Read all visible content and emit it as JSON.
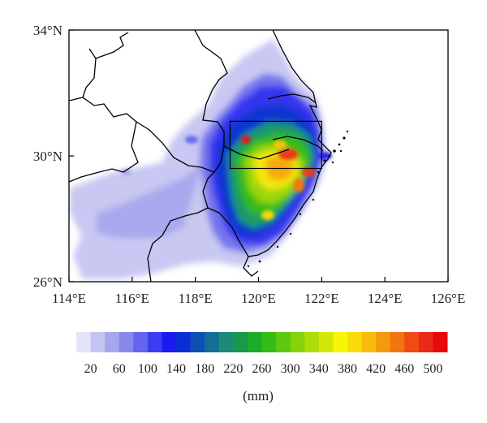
{
  "map": {
    "lat_labels": [
      "34°N",
      "30°N",
      "26°N"
    ],
    "lon_labels": [
      "114°E",
      "116°E",
      "118°E",
      "120°E",
      "122°E",
      "124°E",
      "126°E"
    ],
    "extent": {
      "lon": [
        114,
        126
      ],
      "lat": [
        26,
        34
      ]
    },
    "box": {
      "lon": [
        119.1,
        122.0
      ],
      "lat": [
        29.6,
        31.1
      ]
    }
  },
  "colorbar": {
    "labels": [
      "20",
      "60",
      "100",
      "140",
      "180",
      "220",
      "260",
      "300",
      "340",
      "380",
      "420",
      "460",
      "500"
    ],
    "unit": "(mm)",
    "colors": [
      "#e4e4f8",
      "#c4c4f2",
      "#a6a6ee",
      "#8888ec",
      "#6464ee",
      "#3c3cf0",
      "#1a1aee",
      "#0a2ed2",
      "#0c50b4",
      "#146e96",
      "#1c8a78",
      "#169a4a",
      "#1aac2a",
      "#36bc14",
      "#5cc810",
      "#86d20c",
      "#aedc0a",
      "#d4e808",
      "#f6f606",
      "#fadc0a",
      "#f8bc0c",
      "#f49a0e",
      "#f27410",
      "#ef4c14",
      "#ec2818",
      "#e80a0a"
    ]
  }
}
